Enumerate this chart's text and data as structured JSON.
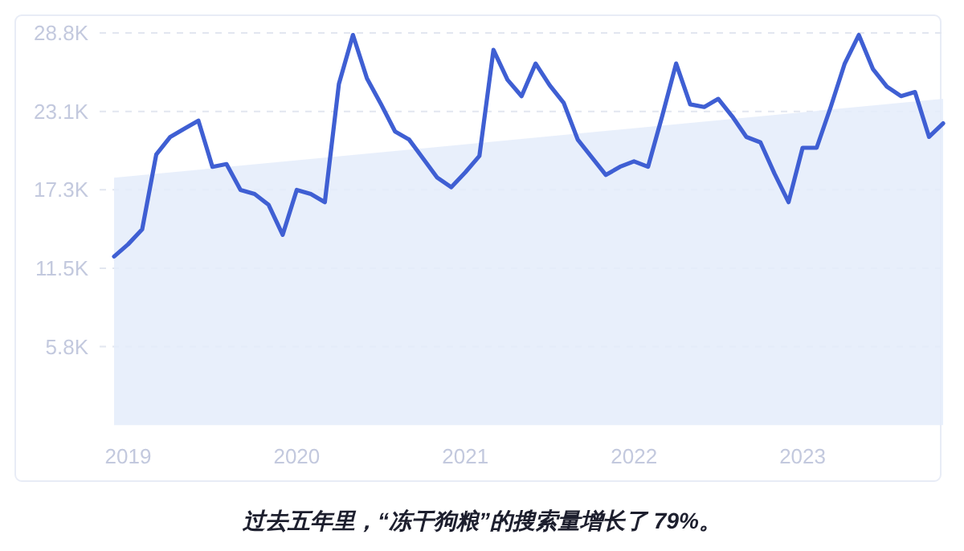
{
  "chart_data": {
    "type": "line",
    "annotations": [
      "过去五年里，“冻干狗粮”的搜索量增长了 79%。"
    ],
    "xlim": [
      "2018-12",
      "2023-11"
    ],
    "xticks": [
      {
        "value": "2019-01",
        "label": "2019"
      },
      {
        "value": "2020-01",
        "label": "2020"
      },
      {
        "value": "2021-01",
        "label": "2021"
      },
      {
        "value": "2022-01",
        "label": "2022"
      },
      {
        "value": "2023-01",
        "label": "2023"
      }
    ],
    "ylim": [
      0,
      28850
    ],
    "yticks": [
      {
        "value": 0,
        "label": null
      },
      {
        "value": 5770,
        "label": "5.8K"
      },
      {
        "value": 11540,
        "label": "11.5K"
      },
      {
        "value": 17310,
        "label": "17.3K"
      },
      {
        "value": 23080,
        "label": "23.1K"
      },
      {
        "value": 28850,
        "label": "28.8K"
      }
    ],
    "grid": "y",
    "series": [
      {
        "type": "area",
        "color": "#e4ecfa",
        "x": [
          "2018-12",
          "2023-11"
        ],
        "values": [
          18200,
          24000
        ]
      },
      {
        "type": "line",
        "color": "#3f5fd3",
        "x": [
          "2018-12",
          "2019-01",
          "2019-02",
          "2019-03",
          "2019-04",
          "2019-05",
          "2019-06",
          "2019-07",
          "2019-08",
          "2019-09",
          "2019-10",
          "2019-11",
          "2019-12",
          "2020-01",
          "2020-02",
          "2020-03",
          "2020-04",
          "2020-05",
          "2020-06",
          "2020-07",
          "2020-08",
          "2020-09",
          "2020-10",
          "2020-11",
          "2020-12",
          "2021-01",
          "2021-02",
          "2021-03",
          "2021-04",
          "2021-05",
          "2021-06",
          "2021-07",
          "2021-08",
          "2021-09",
          "2021-10",
          "2021-11",
          "2021-12",
          "2022-01",
          "2022-02",
          "2022-03",
          "2022-04",
          "2022-05",
          "2022-06",
          "2022-07",
          "2022-08",
          "2022-09",
          "2022-10",
          "2022-11",
          "2022-12",
          "2023-01",
          "2023-02",
          "2023-03",
          "2023-04",
          "2023-05",
          "2023-06",
          "2023-07",
          "2023-08",
          "2023-09",
          "2023-10",
          "2023-11"
        ],
        "values": [
          12400,
          13300,
          14400,
          19900,
          21200,
          21800,
          22400,
          19000,
          19200,
          17300,
          17000,
          16200,
          14000,
          17300,
          17000,
          16400,
          25100,
          28700,
          25500,
          23600,
          21600,
          21000,
          19600,
          18200,
          17500,
          18600,
          19800,
          27600,
          25400,
          24200,
          26600,
          25000,
          23700,
          21000,
          19700,
          18400,
          19000,
          19400,
          19000,
          22700,
          26600,
          23600,
          23400,
          24000,
          22700,
          21200,
          20800,
          18500,
          16400,
          20400,
          20400,
          23400,
          26600,
          28700,
          26200,
          24900,
          24200,
          24500,
          21200,
          22200
        ]
      }
    ]
  }
}
